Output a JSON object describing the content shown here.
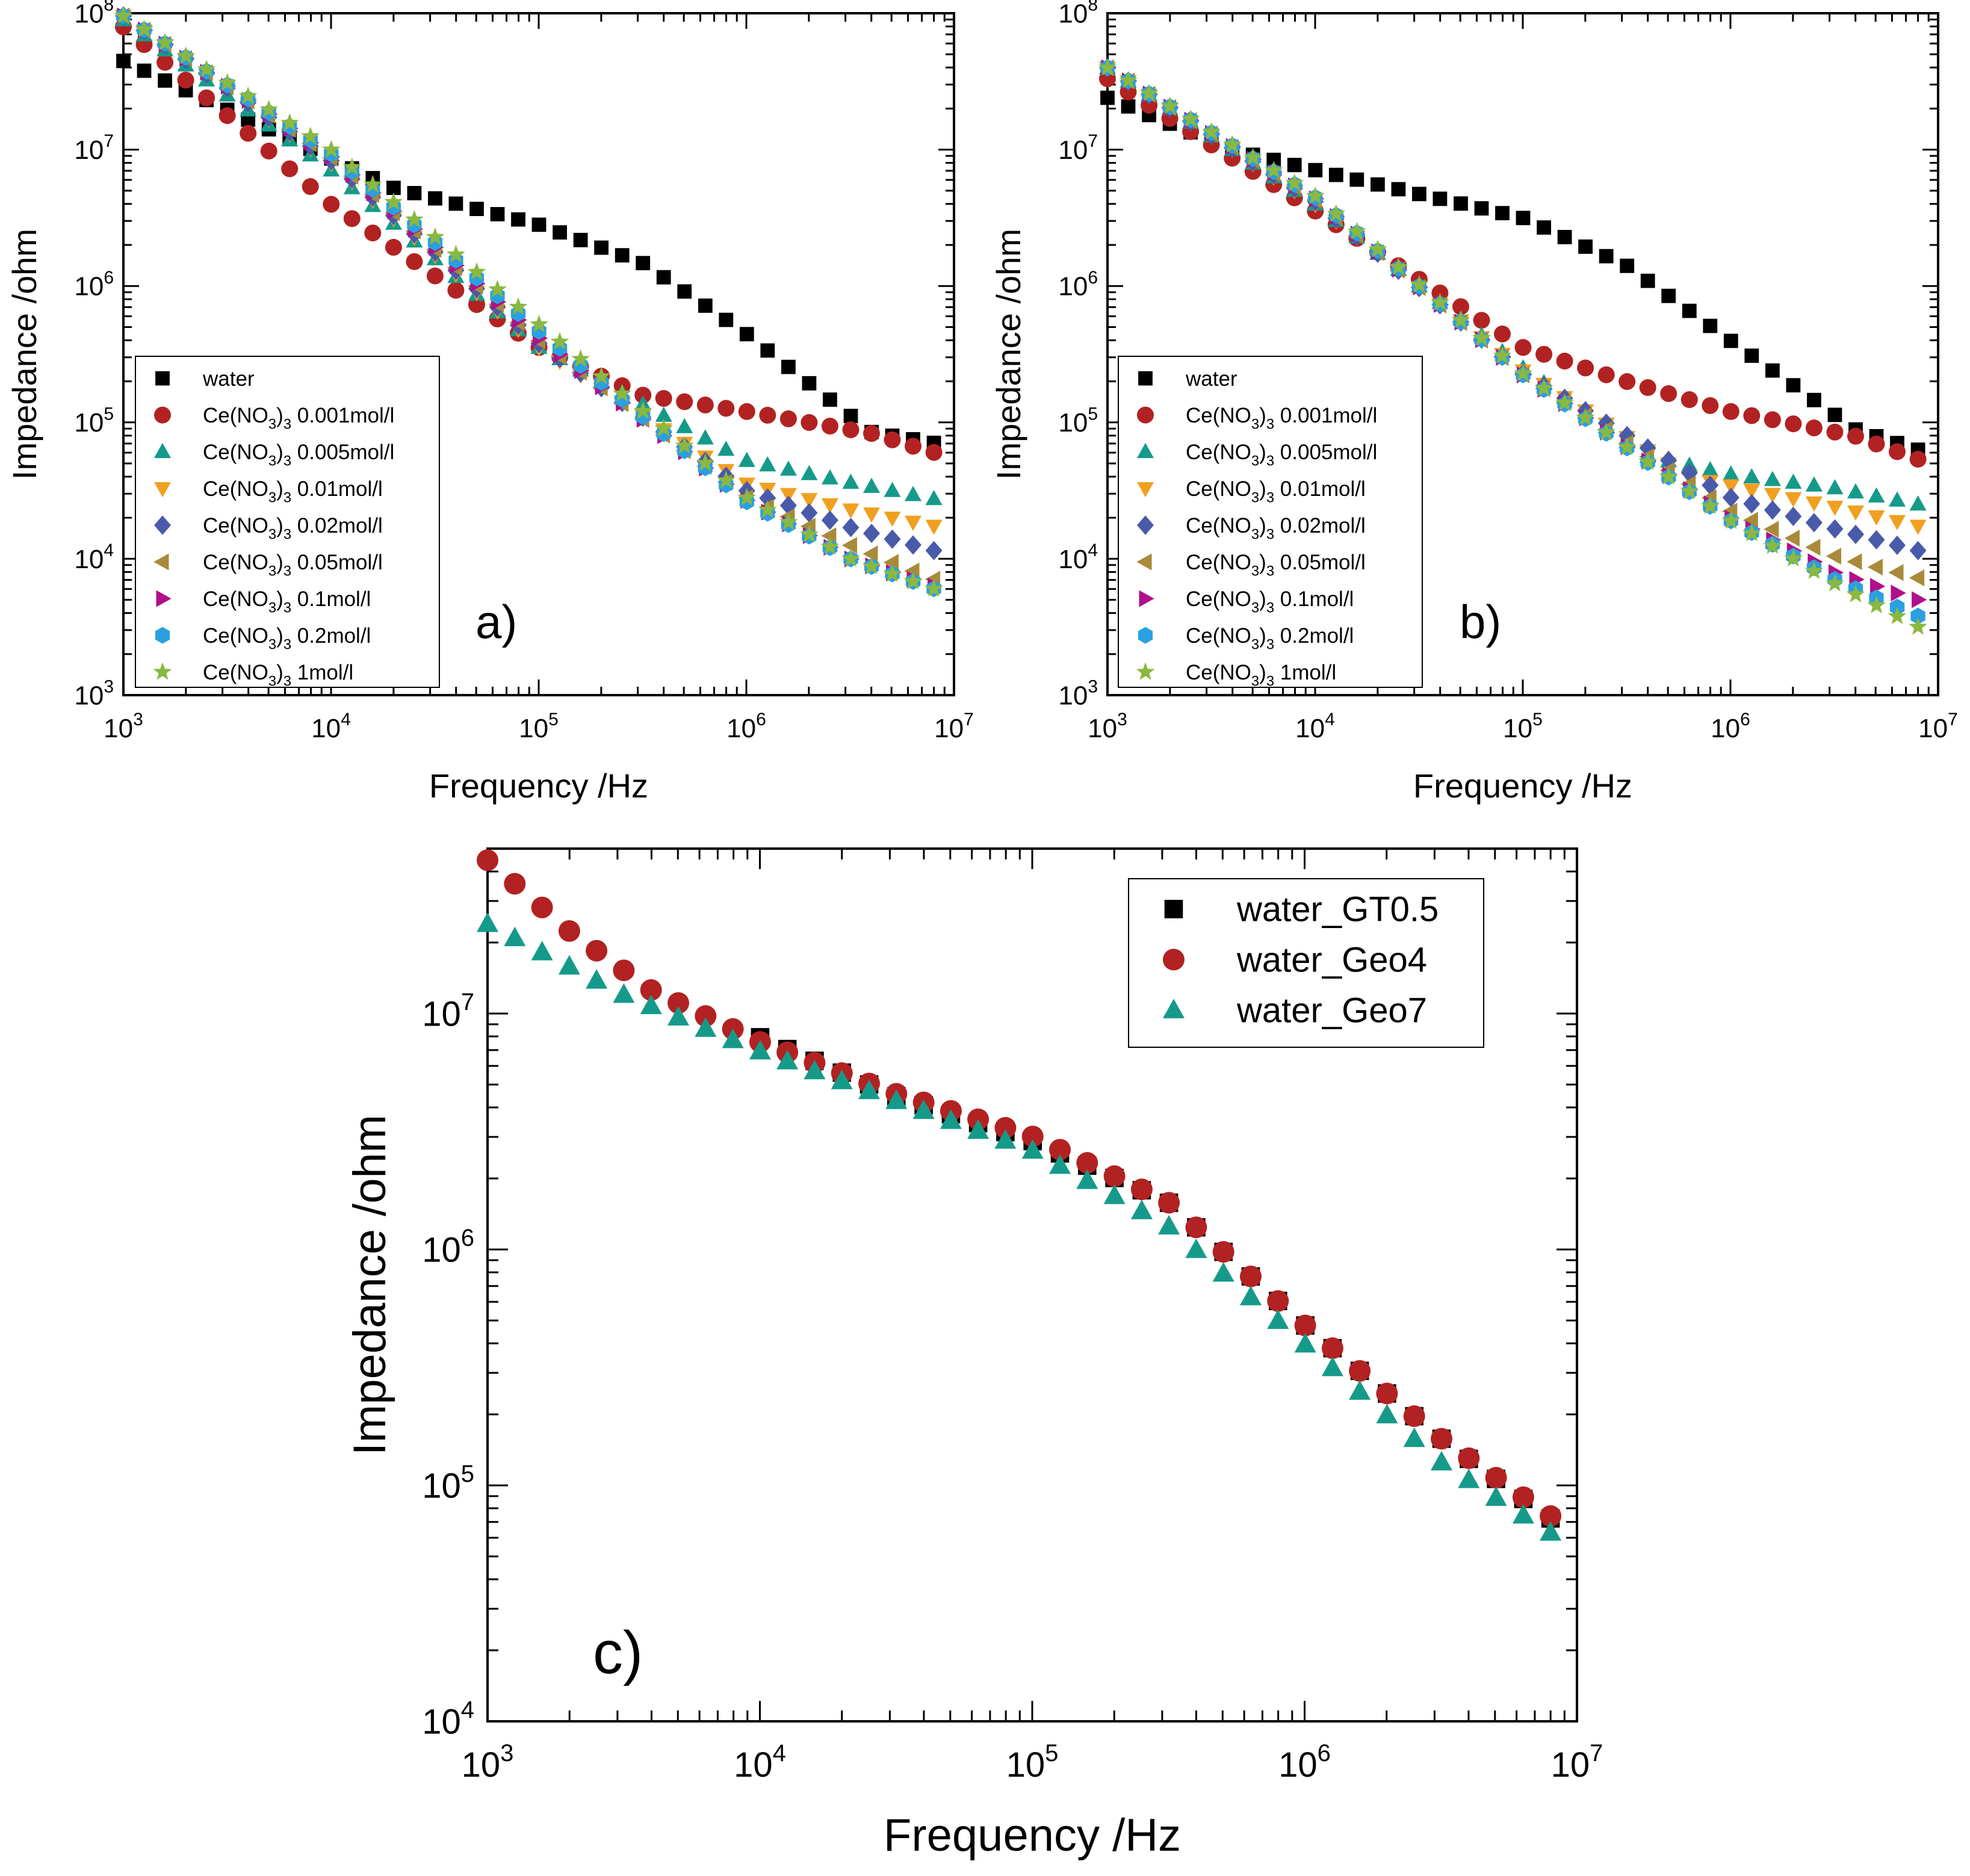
{
  "chart_data": [
    {
      "type": "scatter",
      "panel_label": "a)",
      "xlabel": "Frequency /Hz",
      "ylabel": "Impedance /ohm",
      "xscale": "log",
      "yscale": "log",
      "xlim": [
        1000,
        10000000
      ],
      "ylim": [
        1000,
        100000000
      ],
      "x_ticks": [
        "10^3",
        "10^4",
        "10^5",
        "10^6",
        "10^7"
      ],
      "y_ticks": [
        "10^3",
        "10^4",
        "10^5",
        "10^6",
        "10^7",
        "10^8"
      ],
      "legend_position": "bottom-left",
      "x_range": [
        1000,
        8000000
      ],
      "n_points": 40,
      "series": [
        {
          "name": "water",
          "label_parts": [
            "water"
          ],
          "marker": "square",
          "color": "#000000",
          "points": [
            [
              3,
              7.65
            ],
            [
              4.3,
              6.72
            ],
            [
              5.0,
              6.45
            ],
            [
              5.5,
              6.17
            ],
            [
              6.0,
              5.65
            ],
            [
              6.6,
              4.93
            ],
            [
              6.9,
              4.85
            ]
          ]
        },
        {
          "name": "Ce(NO3)3 0.001mol/l",
          "label_parts": [
            "Ce(NO",
            "3",
            ")",
            "3",
            " 0.001mol/l"
          ],
          "marker": "circle",
          "color": "#b22222",
          "points": [
            [
              3,
              7.9
            ],
            [
              4.0,
              6.6
            ],
            [
              5.0,
              5.55
            ],
            [
              5.5,
              5.2
            ],
            [
              6.0,
              5.08
            ],
            [
              6.6,
              4.92
            ],
            [
              6.9,
              4.78
            ]
          ]
        },
        {
          "name": "Ce(NO3)3 0.005mol/l",
          "label_parts": [
            "Ce(NO",
            "3",
            ")",
            "3",
            " 0.005mol/l"
          ],
          "marker": "triangle-up",
          "color": "#159a8a",
          "points": [
            [
              3,
              7.95
            ],
            [
              4.0,
              6.85
            ],
            [
              5.0,
              5.55
            ],
            [
              6.0,
              4.72
            ],
            [
              6.5,
              4.56
            ],
            [
              6.9,
              4.44
            ]
          ]
        },
        {
          "name": "Ce(NO3)3 0.01mol/l",
          "label_parts": [
            "Ce(NO",
            "3",
            ")",
            "3",
            " 0.01mol/l"
          ],
          "marker": "triangle-down",
          "color": "#f0a020",
          "points": [
            [
              3,
              7.98
            ],
            [
              4.0,
              6.9
            ],
            [
              5.0,
              5.55
            ],
            [
              6.0,
              4.55
            ],
            [
              6.5,
              4.36
            ],
            [
              6.9,
              4.24
            ]
          ]
        },
        {
          "name": "Ce(NO3)3 0.02mol/l",
          "label_parts": [
            "Ce(NO",
            "3",
            ")",
            "3",
            " 0.02mol/l"
          ],
          "marker": "diamond",
          "color": "#4a5aaa",
          "points": [
            [
              3,
              7.98
            ],
            [
              4.0,
              6.92
            ],
            [
              5.0,
              5.58
            ],
            [
              6.0,
              4.5
            ],
            [
              6.5,
              4.23
            ],
            [
              6.9,
              4.06
            ]
          ]
        },
        {
          "name": "Ce(NO3)3 0.05mol/l",
          "label_parts": [
            "Ce(NO",
            "3",
            ")",
            "3",
            " 0.05mol/l"
          ],
          "marker": "triangle-left",
          "color": "#a88a3a",
          "points": [
            [
              3,
              7.98
            ],
            [
              4.0,
              6.94
            ],
            [
              5.0,
              5.6
            ],
            [
              6.0,
              4.45
            ],
            [
              6.5,
              4.1
            ],
            [
              6.9,
              3.85
            ]
          ]
        },
        {
          "name": "Ce(NO3)3 0.1mol/l",
          "label_parts": [
            "Ce(NO",
            "3",
            ")",
            "3",
            " 0.1mol/l"
          ],
          "marker": "triangle-right",
          "color": "#b0108a",
          "points": [
            [
              3,
              7.98
            ],
            [
              4.0,
              6.95
            ],
            [
              5.0,
              5.62
            ],
            [
              6.0,
              4.43
            ],
            [
              6.5,
              4.0
            ],
            [
              6.9,
              3.8
            ]
          ]
        },
        {
          "name": "Ce(NO3)3 0.2mol/l",
          "label_parts": [
            "Ce(NO",
            "3",
            ")",
            "3",
            " 0.2mol/l"
          ],
          "marker": "hexagon",
          "color": "#2aa0e0",
          "points": [
            [
              3,
              7.98
            ],
            [
              4.0,
              6.97
            ],
            [
              5.0,
              5.67
            ],
            [
              6.0,
              4.42
            ],
            [
              6.5,
              4.0
            ],
            [
              6.9,
              3.78
            ]
          ]
        },
        {
          "name": "Ce(NO3)3 1mol/l",
          "label_parts": [
            "Ce(NO",
            "3",
            ")",
            "3",
            " 1mol/l"
          ],
          "marker": "star",
          "color": "#8ab840",
          "points": [
            [
              3,
              7.98
            ],
            [
              4.0,
              7.0
            ],
            [
              5.0,
              5.72
            ],
            [
              6.0,
              4.45
            ],
            [
              6.5,
              4.0
            ],
            [
              6.9,
              3.78
            ]
          ]
        }
      ]
    },
    {
      "type": "scatter",
      "panel_label": "b)",
      "xlabel": "Frequency /Hz",
      "ylabel": "Impedance /ohm",
      "xscale": "log",
      "yscale": "log",
      "xlim": [
        1000,
        10000000
      ],
      "ylim": [
        1000,
        100000000
      ],
      "x_ticks": [
        "10^3",
        "10^4",
        "10^5",
        "10^6",
        "10^7"
      ],
      "y_ticks": [
        "10^3",
        "10^4",
        "10^5",
        "10^6",
        "10^7",
        "10^8"
      ],
      "legend_position": "bottom-left",
      "x_range": [
        1000,
        8000000
      ],
      "n_points": 40,
      "series": [
        {
          "name": "water",
          "label_parts": [
            "water"
          ],
          "marker": "square",
          "color": "#000000",
          "points": [
            [
              3,
              7.38
            ],
            [
              3.6,
              7.0
            ],
            [
              4.0,
              6.85
            ],
            [
              5.0,
              6.5
            ],
            [
              5.5,
              6.15
            ],
            [
              6.0,
              5.6
            ],
            [
              6.6,
              4.95
            ],
            [
              6.9,
              4.8
            ]
          ]
        },
        {
          "name": "Ce(NO3)3 0.001mol/l",
          "label_parts": [
            "Ce(NO",
            "3",
            ")",
            "3",
            " 0.001mol/l"
          ],
          "marker": "circle",
          "color": "#b22222",
          "points": [
            [
              3,
              7.52
            ],
            [
              4.0,
              6.55
            ],
            [
              5.0,
              5.55
            ],
            [
              5.5,
              5.3
            ],
            [
              6.0,
              5.08
            ],
            [
              6.6,
              4.9
            ],
            [
              6.9,
              4.73
            ]
          ]
        },
        {
          "name": "Ce(NO3)3 0.005mol/l",
          "label_parts": [
            "Ce(NO",
            "3",
            ")",
            "3",
            " 0.005mol/l"
          ],
          "marker": "triangle-up",
          "color": "#159a8a",
          "points": [
            [
              3,
              7.6
            ],
            [
              4.0,
              6.6
            ],
            [
              5.0,
              5.4
            ],
            [
              5.6,
              4.75
            ],
            [
              6.0,
              4.62
            ],
            [
              6.5,
              4.52
            ],
            [
              6.9,
              4.4
            ]
          ]
        },
        {
          "name": "Ce(NO3)3 0.01mol/l",
          "label_parts": [
            "Ce(NO",
            "3",
            ")",
            "3",
            " 0.01mol/l"
          ],
          "marker": "triangle-down",
          "color": "#f0a020",
          "points": [
            [
              3,
              7.6
            ],
            [
              4.0,
              6.6
            ],
            [
              5.0,
              5.38
            ],
            [
              5.8,
              4.6
            ],
            [
              6.5,
              4.38
            ],
            [
              6.9,
              4.24
            ]
          ]
        },
        {
          "name": "Ce(NO3)3 0.02mol/l",
          "label_parts": [
            "Ce(NO",
            "3",
            ")",
            "3",
            " 0.02mol/l"
          ],
          "marker": "diamond",
          "color": "#4a5aaa",
          "points": [
            [
              3,
              7.6
            ],
            [
              4.0,
              6.62
            ],
            [
              5.0,
              5.36
            ],
            [
              6.0,
              4.45
            ],
            [
              6.5,
              4.22
            ],
            [
              6.9,
              4.06
            ]
          ]
        },
        {
          "name": "Ce(NO3)3 0.05mol/l",
          "label_parts": [
            "Ce(NO",
            "3",
            ")",
            "3",
            " 0.05mol/l"
          ],
          "marker": "triangle-left",
          "color": "#a88a3a",
          "points": [
            [
              3,
              7.6
            ],
            [
              4.0,
              6.63
            ],
            [
              5.0,
              5.35
            ],
            [
              6.0,
              4.35
            ],
            [
              6.5,
              4.02
            ],
            [
              6.9,
              3.86
            ]
          ]
        },
        {
          "name": "Ce(NO3)3 0.1mol/l",
          "label_parts": [
            "Ce(NO",
            "3",
            ")",
            "3",
            " 0.1mol/l"
          ],
          "marker": "triangle-right",
          "color": "#b0108a",
          "points": [
            [
              3,
              7.6
            ],
            [
              4.0,
              6.64
            ],
            [
              5.0,
              5.35
            ],
            [
              6.0,
              4.3
            ],
            [
              6.5,
              3.9
            ],
            [
              6.9,
              3.7
            ]
          ]
        },
        {
          "name": "Ce(NO3)3 0.2mol/l",
          "label_parts": [
            "Ce(NO",
            "3",
            ")",
            "3",
            " 0.2mol/l"
          ],
          "marker": "hexagon",
          "color": "#2aa0e0",
          "points": [
            [
              3,
              7.6
            ],
            [
              4.0,
              6.65
            ],
            [
              5.0,
              5.35
            ],
            [
              6.0,
              4.28
            ],
            [
              6.5,
              3.85
            ],
            [
              6.9,
              3.58
            ]
          ]
        },
        {
          "name": "Ce(NO3)3 1mol/l",
          "label_parts": [
            "Ce(NO",
            "3",
            ")",
            "3",
            " 1mol/l"
          ],
          "marker": "star",
          "color": "#8ab840",
          "points": [
            [
              3,
              7.6
            ],
            [
              4.0,
              6.66
            ],
            [
              5.0,
              5.36
            ],
            [
              6.0,
              4.28
            ],
            [
              6.5,
              3.82
            ],
            [
              6.9,
              3.5
            ]
          ]
        }
      ]
    },
    {
      "type": "scatter",
      "panel_label": "c)",
      "xlabel": "Frequency /Hz",
      "ylabel": "Impedance /ohm",
      "xscale": "log",
      "yscale": "log",
      "xlim": [
        1000,
        10000000
      ],
      "ylim": [
        10000,
        50000000
      ],
      "x_ticks": [
        "10^3",
        "10^4",
        "10^5",
        "10^6",
        "10^7"
      ],
      "y_ticks": [
        "10^4",
        "10^5",
        "10^6",
        "10^7"
      ],
      "legend_position": "top-right",
      "x_range": [
        1000,
        8000000
      ],
      "n_points": 40,
      "series": [
        {
          "name": "water_GT0.5",
          "label_parts": [
            "water_GT0.5"
          ],
          "marker": "square",
          "color": "#000000",
          "x_start": 10000,
          "points": [
            [
              4.0,
              6.9
            ],
            [
              4.5,
              6.65
            ],
            [
              5.0,
              6.46
            ],
            [
              5.5,
              6.2
            ],
            [
              6.0,
              5.68
            ],
            [
              6.5,
              5.2
            ],
            [
              6.9,
              4.86
            ]
          ]
        },
        {
          "name": "water_Geo4",
          "label_parts": [
            "water_Geo4"
          ],
          "marker": "circle",
          "color": "#b22222",
          "points": [
            [
              3,
              7.65
            ],
            [
              3.3,
              7.35
            ],
            [
              3.6,
              7.1
            ],
            [
              4.0,
              6.88
            ],
            [
              4.5,
              6.66
            ],
            [
              5.0,
              6.48
            ],
            [
              5.5,
              6.2
            ],
            [
              6.0,
              5.68
            ],
            [
              6.5,
              5.2
            ],
            [
              6.9,
              4.87
            ]
          ]
        },
        {
          "name": "water_Geo7",
          "label_parts": [
            "water_Geo7"
          ],
          "marker": "triangle-up",
          "color": "#159a8a",
          "points": [
            [
              3,
              7.38
            ],
            [
              3.5,
              7.08
            ],
            [
              4.0,
              6.84
            ],
            [
              4.5,
              6.63
            ],
            [
              5.0,
              6.42
            ],
            [
              5.5,
              6.1
            ],
            [
              6.0,
              5.6
            ],
            [
              6.5,
              5.1
            ],
            [
              6.9,
              4.8
            ]
          ]
        }
      ]
    }
  ]
}
